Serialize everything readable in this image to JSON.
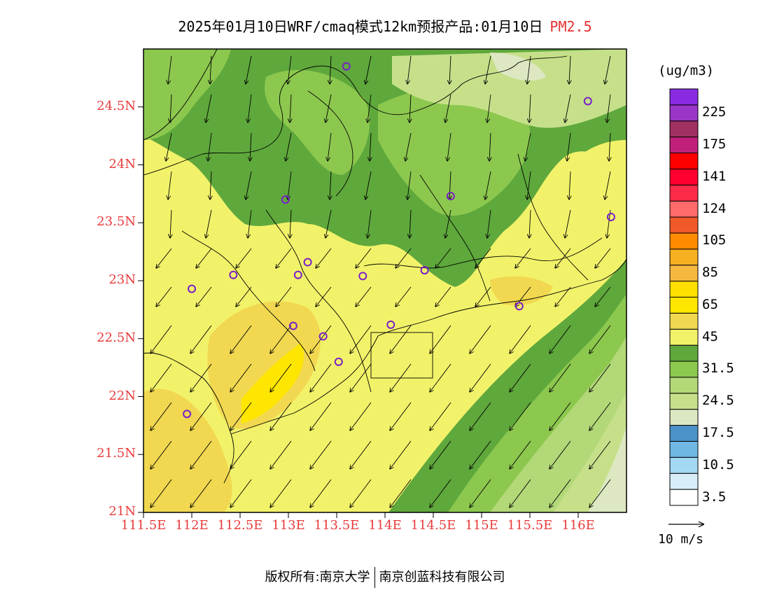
{
  "title": {
    "main": "2025年01月10日WRF/cmaq模式12km预报产品:01月10日",
    "variable": "PM2.5"
  },
  "map": {
    "lon_range": [
      111.5,
      116.5
    ],
    "lat_range": [
      21.0,
      25.0
    ],
    "y_ticks": [
      "21N",
      "21.5N",
      "22N",
      "22.5N",
      "23N",
      "23.5N",
      "24N",
      "24.5N"
    ],
    "y_tick_values": [
      21.0,
      21.5,
      22.0,
      22.5,
      23.0,
      23.5,
      24.0,
      24.5
    ],
    "x_ticks": [
      "111.5E",
      "112E",
      "112.5E",
      "113E",
      "113.5E",
      "114E",
      "114.5E",
      "115E",
      "115.5E",
      "116E"
    ],
    "x_tick_values": [
      111.5,
      112.0,
      112.5,
      113.0,
      113.5,
      114.0,
      114.5,
      115.0,
      115.5,
      116.0
    ],
    "stations": [
      {
        "lon": 113.6,
        "lat": 24.85
      },
      {
        "lon": 116.1,
        "lat": 24.55
      },
      {
        "lon": 112.97,
        "lat": 23.7
      },
      {
        "lon": 114.68,
        "lat": 23.73
      },
      {
        "lon": 116.34,
        "lat": 23.55
      },
      {
        "lon": 112.0,
        "lat": 22.93
      },
      {
        "lon": 112.43,
        "lat": 23.05
      },
      {
        "lon": 113.1,
        "lat": 23.05
      },
      {
        "lon": 113.2,
        "lat": 23.16
      },
      {
        "lon": 113.77,
        "lat": 23.04
      },
      {
        "lon": 114.41,
        "lat": 23.09
      },
      {
        "lon": 115.39,
        "lat": 22.78
      },
      {
        "lon": 113.05,
        "lat": 22.61
      },
      {
        "lon": 113.36,
        "lat": 22.52
      },
      {
        "lon": 114.06,
        "lat": 22.62
      },
      {
        "lon": 113.52,
        "lat": 22.3
      },
      {
        "lon": 111.95,
        "lat": 21.85
      }
    ]
  },
  "colorbar": {
    "unit": "(ug/m3)",
    "colors": [
      "#ffffff",
      "#d7eef8",
      "#a3d9f3",
      "#6fb8e4",
      "#4a92c8",
      "#dde8c2",
      "#c6e08a",
      "#b3d878",
      "#8cc84e",
      "#5fa83c",
      "#f2f26a",
      "#f1d850",
      "#ffe600",
      "#ffe000",
      "#f7b840",
      "#f7b020",
      "#ff8c00",
      "#f05a28",
      "#ff6a6a",
      "#ff2a4a",
      "#ff0030",
      "#ff0000",
      "#c0207a",
      "#a03060",
      "#9a35c8",
      "#8a2be2"
    ],
    "labels": [
      "3.5",
      "10.5",
      "17.5",
      "24.5",
      "31.5",
      "45",
      "65",
      "85",
      "105",
      "124",
      "141",
      "175",
      "225"
    ]
  },
  "wind_legend": {
    "label": "10 m/s"
  },
  "footer": {
    "copyright": "版权所有:南京大学",
    "company": "南京创蓝科技有限公司"
  }
}
